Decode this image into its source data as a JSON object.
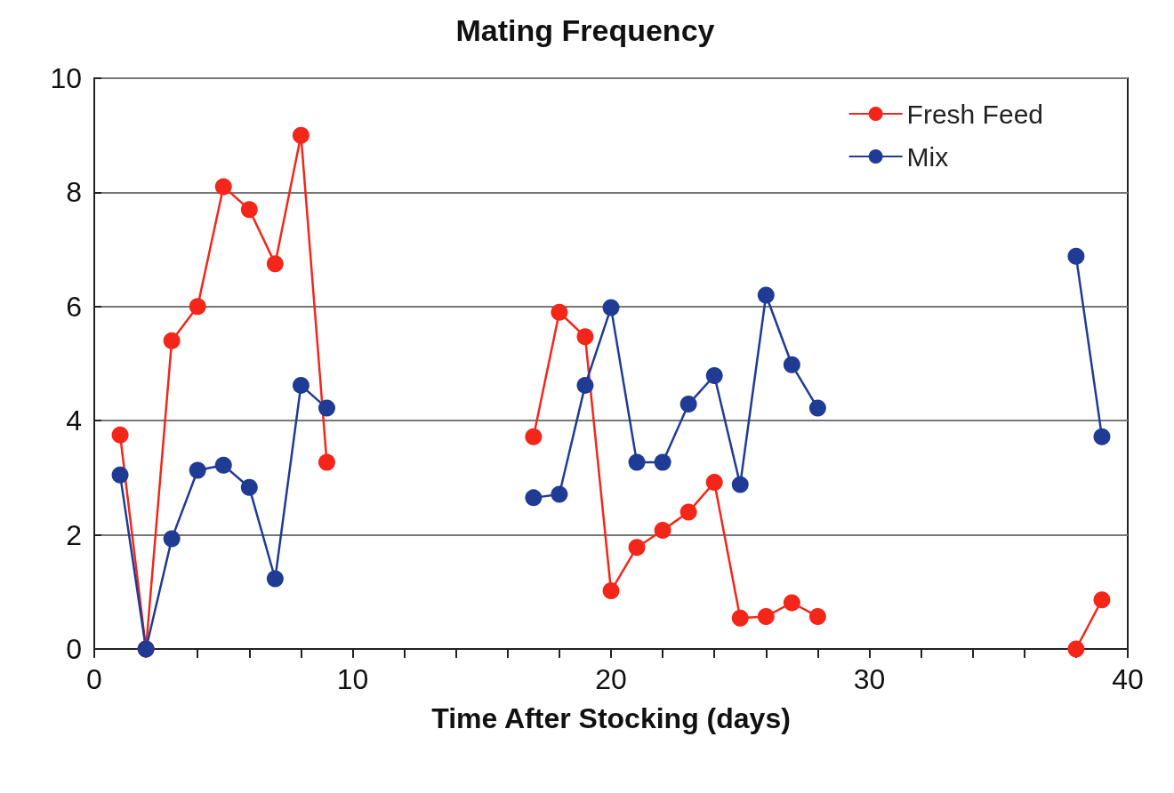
{
  "chart_data": {
    "type": "line",
    "title": "Mating Frequency",
    "xlabel": "Time After Stocking (days)",
    "x": [
      1,
      2,
      3,
      4,
      5,
      6,
      7,
      8,
      9,
      10,
      11,
      12,
      13,
      14,
      15,
      16,
      17,
      18,
      19,
      20,
      21,
      22,
      23,
      24,
      25,
      26,
      27,
      28,
      29,
      30,
      31,
      32,
      33,
      34,
      35,
      36,
      37,
      38,
      39
    ],
    "series": [
      {
        "name": "Fresh Feed",
        "color": "#f4261a",
        "values": [
          3.75,
          0,
          5.4,
          6.0,
          8.1,
          7.7,
          6.75,
          9.0,
          3.27,
          null,
          null,
          null,
          null,
          null,
          null,
          null,
          3.72,
          5.9,
          5.47,
          1.02,
          1.78,
          2.08,
          2.4,
          2.92,
          0.54,
          0.57,
          0.81,
          0.57,
          null,
          null,
          null,
          null,
          null,
          null,
          null,
          null,
          null,
          0,
          0.86
        ]
      },
      {
        "name": "Mix",
        "color": "#1f3b94",
        "values": [
          3.05,
          0,
          1.93,
          3.13,
          3.22,
          2.83,
          1.23,
          4.62,
          4.22,
          null,
          null,
          null,
          null,
          null,
          null,
          null,
          2.65,
          2.71,
          4.62,
          5.98,
          3.27,
          3.27,
          4.29,
          4.79,
          2.88,
          6.2,
          4.98,
          4.22,
          null,
          null,
          null,
          null,
          null,
          null,
          null,
          null,
          null,
          6.88,
          3.72
        ]
      }
    ],
    "xlim": [
      0,
      40
    ],
    "xticks": [
      0,
      {
        "value": 2,
        "label": null
      },
      {
        "value": 4,
        "label": null
      },
      {
        "value": 6,
        "label": null
      },
      {
        "value": 8,
        "label": null
      },
      10,
      {
        "value": 12,
        "label": null
      },
      {
        "value": 14,
        "label": null
      },
      {
        "value": 16,
        "label": null
      },
      {
        "value": 18,
        "label": null
      },
      20,
      {
        "value": 22,
        "label": null
      },
      {
        "value": 24,
        "label": null
      },
      {
        "value": 26,
        "label": null
      },
      {
        "value": 28,
        "label": null
      },
      30,
      {
        "value": 32,
        "label": null
      },
      {
        "value": 34,
        "label": null
      },
      {
        "value": 36,
        "label": null
      },
      {
        "value": 38,
        "label": null
      },
      40
    ],
    "ylim": [
      0,
      10
    ],
    "yticks": [
      0,
      2,
      4,
      6,
      8,
      10
    ],
    "grid": "y",
    "legend": "top right",
    "marker": "circle",
    "line_style": "solid"
  }
}
